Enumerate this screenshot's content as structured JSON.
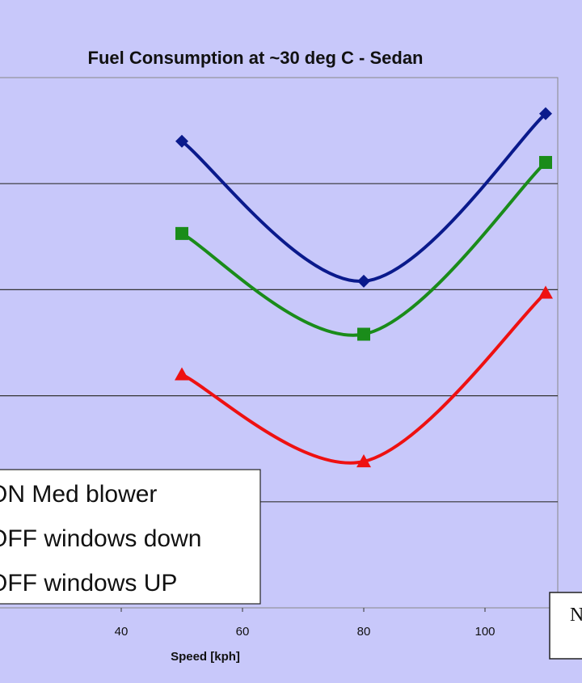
{
  "chart_data": {
    "type": "line",
    "title": "Fuel Consumption at ~30 deg C - Sedan",
    "xlabel": "Speed [kph]",
    "ylabel": "",
    "x_ticks": [
      40,
      60,
      80,
      100
    ],
    "xlim": [
      20,
      112
    ],
    "ylim": [
      0,
      5
    ],
    "grid": true,
    "legend_position": "lower-left",
    "series": [
      {
        "name": "ON Med blower",
        "color": "#0a1a8c",
        "marker": "diamond",
        "x": [
          50,
          80,
          110
        ],
        "y": [
          4.4,
          3.08,
          4.66
        ]
      },
      {
        "name": "OFF windows down",
        "color": "#1a8c1a",
        "marker": "square",
        "x": [
          50,
          80,
          110
        ],
        "y": [
          3.53,
          2.58,
          4.2
        ]
      },
      {
        "name": "OFF windows UP",
        "color": "#ee1111",
        "marker": "triangle",
        "x": [
          50,
          80,
          110
        ],
        "y": [
          2.2,
          1.38,
          2.97
        ]
      }
    ],
    "corner_label": "N"
  }
}
